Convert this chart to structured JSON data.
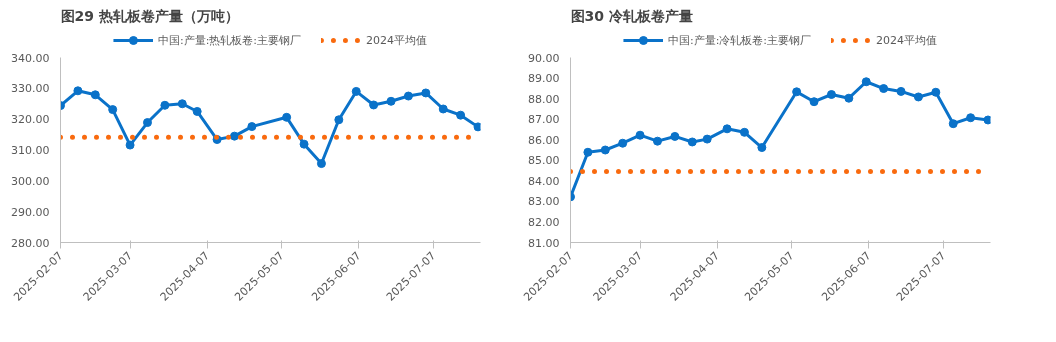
{
  "chart_data": [
    {
      "type": "line",
      "title": "图29 热轧板卷产量（万吨）",
      "legend": "top",
      "marker": "circle",
      "grid": false,
      "x": [
        "2025-02-07",
        "2025-02-14",
        "2025-02-21",
        "2025-02-28",
        "2025-03-07",
        "2025-03-14",
        "2025-03-21",
        "2025-03-28",
        "2025-04-03",
        "2025-04-11",
        "2025-04-18",
        "2025-04-25",
        "2025-05-09",
        "2025-05-16",
        "2025-05-23",
        "2025-05-30",
        "2025-06-06",
        "2025-06-13",
        "2025-06-20",
        "2025-06-27",
        "2025-07-04",
        "2025-07-11",
        "2025-07-18",
        "2025-07-25"
      ],
      "series": [
        {
          "name": "中国:产量:热轧板卷:主要钢厂",
          "color": "#0a72c9",
          "values": [
            324.4,
            329.2,
            327.9,
            323.1,
            311.6,
            318.9,
            324.5,
            325.0,
            322.5,
            313.4,
            314.5,
            317.6,
            320.6,
            311.9,
            305.6,
            319.8,
            329.0,
            324.6,
            325.8,
            327.5,
            328.5,
            323.3,
            321.3,
            317.5
          ]
        },
        {
          "name": "2024平均值",
          "color": "#f96a0e",
          "type": "line",
          "marker": "none",
          "line_style": "dotted",
          "x": [
            "2025-02-07",
            "2025-07-25"
          ],
          "values": [
            314.1,
            314.1
          ]
        }
      ],
      "xlim": [
        "2025-02-07",
        "2025-07-26"
      ],
      "xticks": [
        "2025-02-07",
        "2025-03-07",
        "2025-04-07",
        "2025-05-07",
        "2025-06-07",
        "2025-07-07"
      ],
      "ylim": [
        280,
        340
      ],
      "yticks": [
        {
          "value": 280,
          "label": "280.00"
        },
        {
          "value": 290,
          "label": "290.00"
        },
        {
          "value": 300,
          "label": "300.00"
        },
        {
          "value": 310,
          "label": "310.00"
        },
        {
          "value": 320,
          "label": "320.00"
        },
        {
          "value": 330,
          "label": "330.00"
        },
        {
          "value": 340,
          "label": "340.00"
        }
      ]
    },
    {
      "type": "line",
      "title": "图30 冷轧板卷产量",
      "legend": "top",
      "marker": "circle",
      "grid": false,
      "x": [
        "2025-02-07",
        "2025-02-14",
        "2025-02-21",
        "2025-02-28",
        "2025-03-07",
        "2025-03-14",
        "2025-03-21",
        "2025-03-28",
        "2025-04-03",
        "2025-04-11",
        "2025-04-18",
        "2025-04-25",
        "2025-05-09",
        "2025-05-16",
        "2025-05-23",
        "2025-05-30",
        "2025-06-06",
        "2025-06-13",
        "2025-06-20",
        "2025-06-27",
        "2025-07-04",
        "2025-07-11",
        "2025-07-18",
        "2025-07-25"
      ],
      "series": [
        {
          "name": "中国:产量:冷轧板卷:主要钢厂",
          "color": "#0a72c9",
          "values": [
            83.22,
            85.39,
            85.5,
            85.83,
            86.22,
            85.93,
            86.16,
            85.89,
            86.03,
            86.53,
            86.36,
            85.62,
            88.33,
            87.85,
            88.2,
            88.02,
            88.82,
            88.49,
            88.35,
            88.08,
            88.31,
            86.78,
            87.07,
            86.96
          ]
        },
        {
          "name": "2024平均值",
          "color": "#f96a0e",
          "type": "line",
          "marker": "none",
          "line_style": "dotted",
          "x": [
            "2025-02-07",
            "2025-07-25"
          ],
          "values": [
            84.46,
            84.46
          ]
        }
      ],
      "xlim": [
        "2025-02-07",
        "2025-07-26"
      ],
      "xticks": [
        "2025-02-07",
        "2025-03-07",
        "2025-04-07",
        "2025-05-07",
        "2025-06-07",
        "2025-07-07"
      ],
      "ylim": [
        81,
        90
      ],
      "yticks": [
        {
          "value": 81,
          "label": "81.00"
        },
        {
          "value": 82,
          "label": "82.00"
        },
        {
          "value": 83,
          "label": "83.00"
        },
        {
          "value": 84,
          "label": "84.00"
        },
        {
          "value": 85,
          "label": "85.00"
        },
        {
          "value": 86,
          "label": "86.00"
        },
        {
          "value": 87,
          "label": "87.00"
        },
        {
          "value": 88,
          "label": "88.00"
        },
        {
          "value": 89,
          "label": "89.00"
        },
        {
          "value": 90,
          "label": "90.00"
        }
      ]
    }
  ]
}
